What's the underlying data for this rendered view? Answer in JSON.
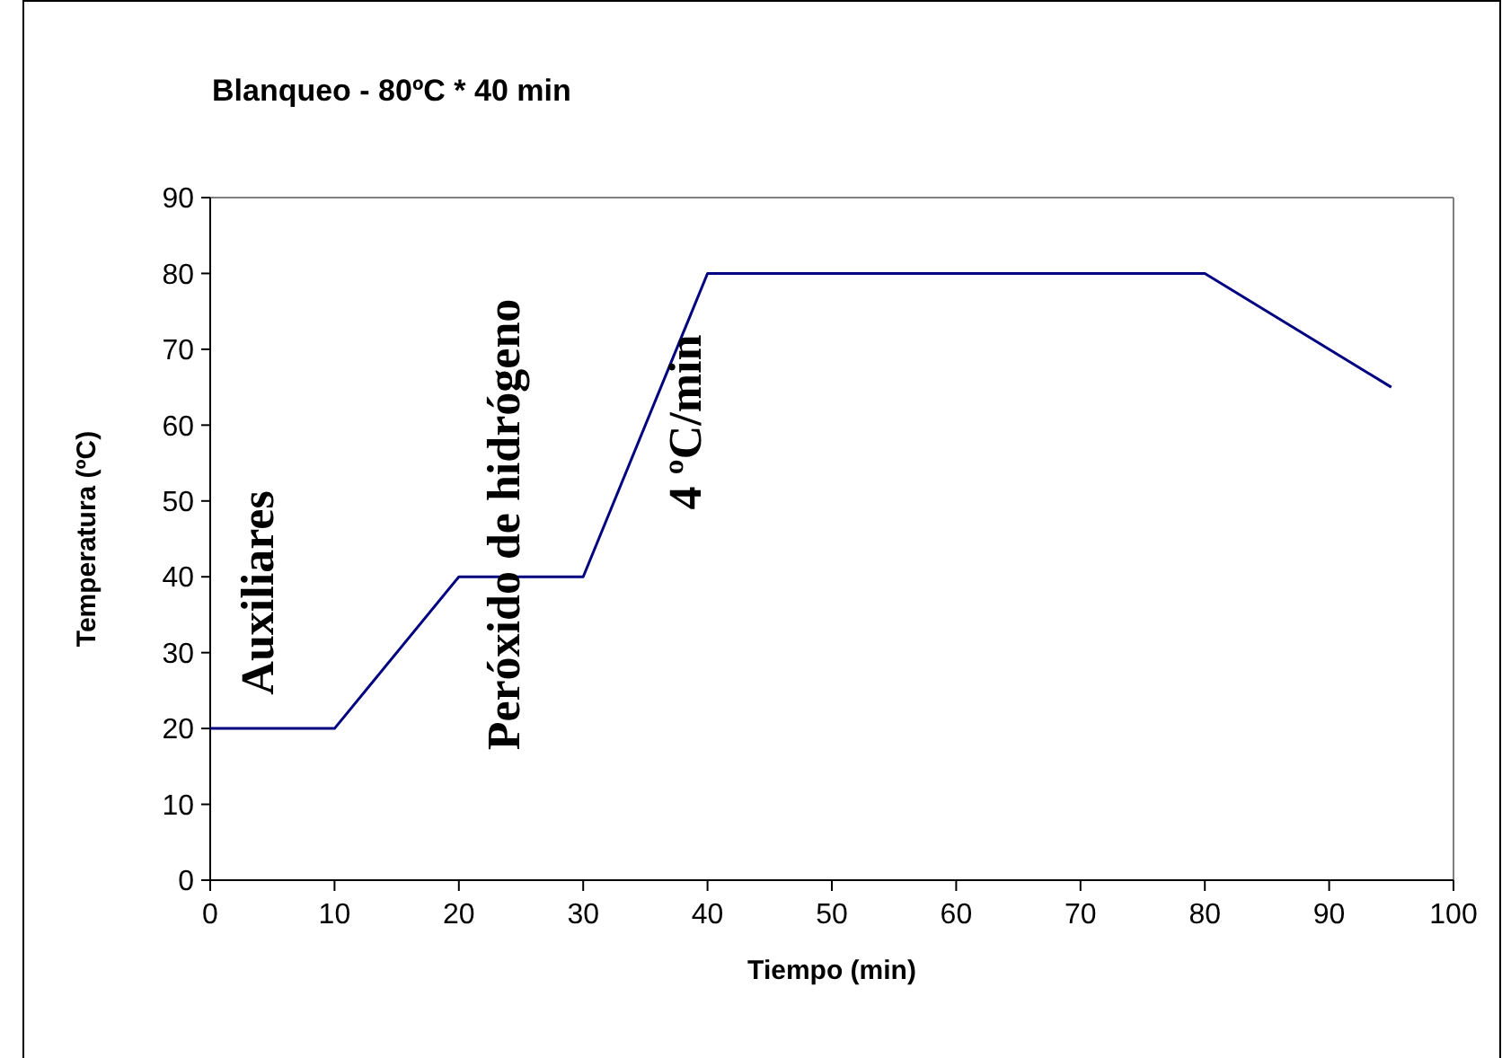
{
  "chart_data": {
    "type": "line",
    "title": "Blanqueo - 80ºC * 40 min",
    "xlabel": "Tiempo (min)",
    "ylabel": "Temperatura (ºC)",
    "x": [
      0,
      10,
      20,
      30,
      40,
      50,
      60,
      70,
      80,
      95
    ],
    "series": [
      {
        "color": "#000080",
        "values": [
          20,
          20,
          40,
          40,
          80,
          80,
          80,
          80,
          80,
          65
        ]
      }
    ],
    "xlim": [
      0,
      100
    ],
    "xticks": [
      0,
      10,
      20,
      30,
      40,
      50,
      60,
      70,
      80,
      90,
      100
    ],
    "ylim": [
      0,
      90
    ],
    "yticks": [
      0,
      10,
      20,
      30,
      40,
      50,
      60,
      70,
      80,
      90
    ],
    "grid": false,
    "marker": "none",
    "line_style": "solid",
    "annotations": [
      "Auxiliares",
      "Peróxido de hidrógeno",
      "4 ºC/min"
    ]
  }
}
